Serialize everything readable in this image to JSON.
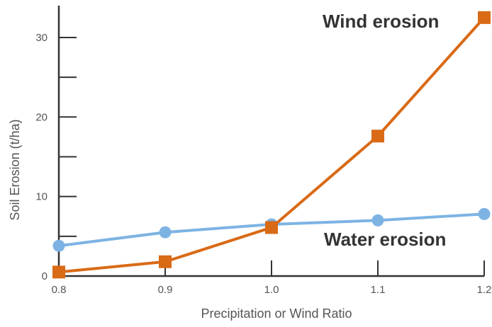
{
  "chart_data": {
    "type": "line",
    "xlabel": "Precipitation or Wind Ratio",
    "ylabel": "Soil Erosion (t/ha)",
    "x_ticks": [
      {
        "value": 0.8,
        "label": "0.8"
      },
      {
        "value": 0.9,
        "label": "0.9"
      },
      {
        "value": 1.0,
        "label": "1.0"
      },
      {
        "value": 1.1,
        "label": "1.1"
      },
      {
        "value": 1.2,
        "label": "1.2"
      }
    ],
    "y_ticks": [
      {
        "value": 0,
        "label": "0"
      },
      {
        "value": 10,
        "label": "10"
      },
      {
        "value": 20,
        "label": "20"
      },
      {
        "value": 30,
        "label": "30"
      }
    ],
    "xlim": [
      0.8,
      1.2
    ],
    "ylim": [
      0,
      34
    ],
    "grid": false,
    "series": [
      {
        "name": "Water erosion",
        "color": "#7db3e3",
        "marker": "circle",
        "x": [
          0.8,
          0.9,
          1.0,
          1.1,
          1.2
        ],
        "y": [
          3.8,
          5.5,
          6.5,
          7.0,
          7.8
        ]
      },
      {
        "name": "Wind erosion",
        "color": "#d96a16",
        "marker": "square",
        "x": [
          0.8,
          0.9,
          1.0,
          1.1,
          1.2
        ],
        "y": [
          0.5,
          1.8,
          6.1,
          17.6,
          32.5
        ]
      }
    ]
  }
}
